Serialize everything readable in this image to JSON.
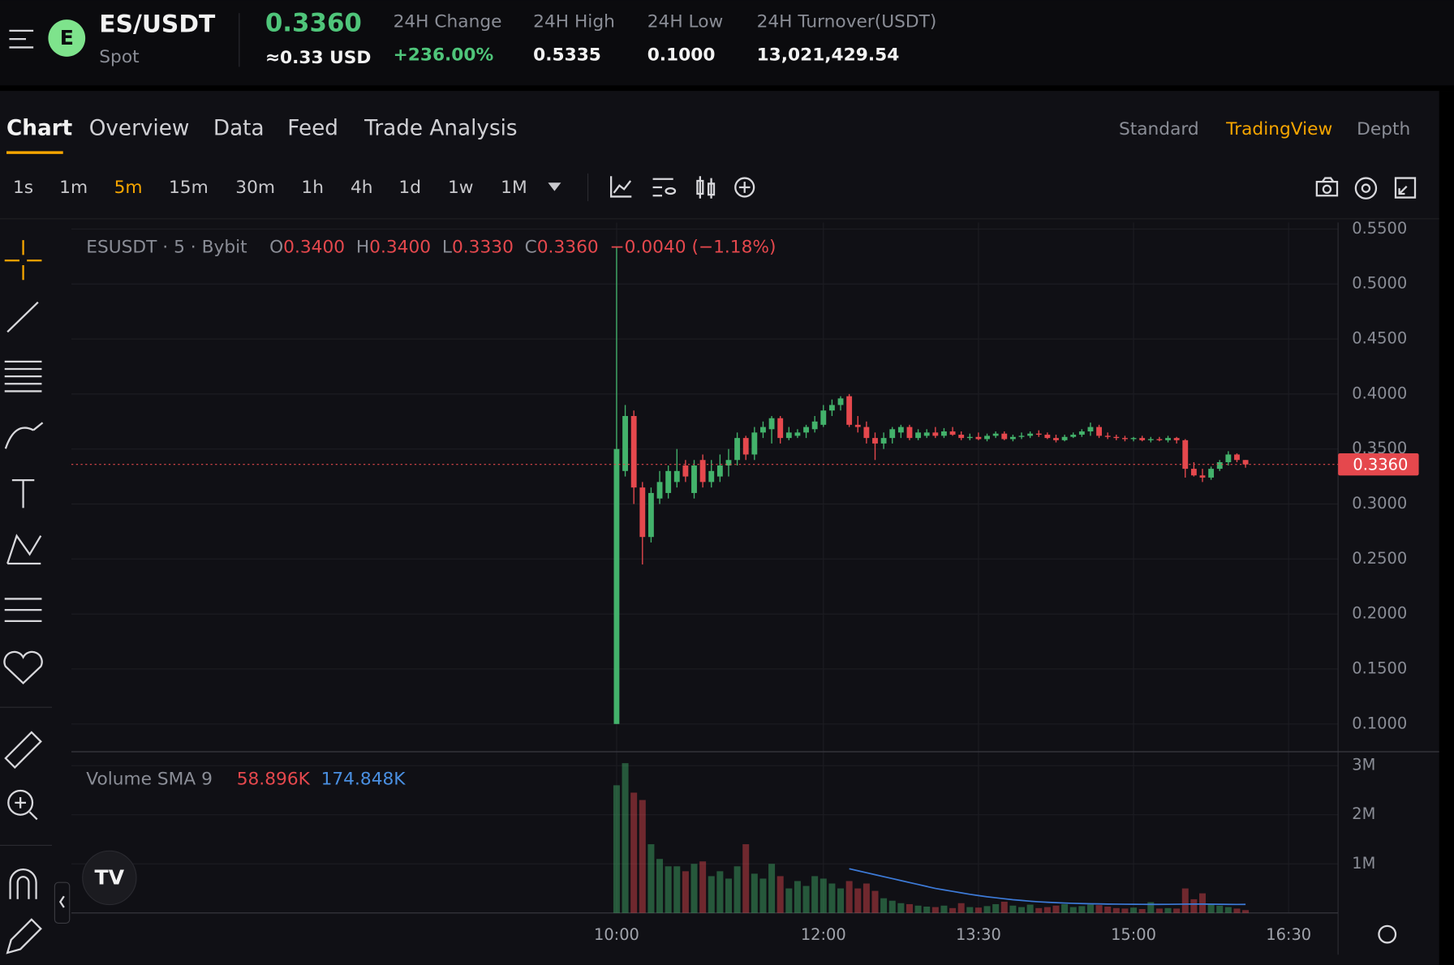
{
  "header": {
    "symbol": "ES/USDT",
    "market": "Spot",
    "price": "0.3360",
    "price_usd": "≈0.33 USD",
    "stats": [
      {
        "label": "24H Change",
        "value": "+236.00%"
      },
      {
        "label": "24H High",
        "value": "0.5335"
      },
      {
        "label": "24H Low",
        "value": "0.1000"
      },
      {
        "label": "24H Turnover(USDT)",
        "value": "13,021,429.54"
      }
    ]
  },
  "tabs": [
    "Chart",
    "Overview",
    "Data",
    "Feed",
    "Trade Analysis"
  ],
  "views": [
    "Standard",
    "TradingView",
    "Depth"
  ],
  "intervals": [
    "1s",
    "1m",
    "5m",
    "15m",
    "30m",
    "1h",
    "4h",
    "1d",
    "1w",
    "1M"
  ],
  "chart_data": {
    "type": "candlestick",
    "legend_symbol": "ESUSDT · 5 · Bybit",
    "ohlc_legend": [
      {
        "key": "O",
        "value": "0.3400"
      },
      {
        "key": "H",
        "value": "0.3400"
      },
      {
        "key": "L",
        "value": "0.3330"
      },
      {
        "key": "C",
        "value": "0.3360"
      }
    ],
    "change": "−0.0040 (−1.18%)",
    "up_color": "#43b26b",
    "down_color": "#e5484d",
    "grid": true,
    "x": [
      600,
      605,
      610,
      615,
      620,
      625,
      630,
      635,
      640,
      645,
      650,
      655,
      660,
      665,
      670,
      675,
      680,
      685,
      690,
      695,
      700,
      705,
      710,
      715,
      720,
      725,
      730,
      735,
      740,
      745,
      750,
      755,
      760,
      765,
      770,
      775,
      780,
      785,
      790,
      795,
      800,
      805,
      810,
      815,
      820,
      825,
      830,
      835,
      840,
      845,
      850,
      855,
      860,
      865,
      870,
      875,
      880,
      885,
      890,
      895,
      900,
      905,
      910,
      915,
      920,
      925,
      930,
      935,
      940,
      945,
      950,
      955,
      960,
      965
    ],
    "open": [
      0.1,
      0.33,
      0.38,
      0.315,
      0.27,
      0.305,
      0.31,
      0.32,
      0.335,
      0.31,
      0.34,
      0.32,
      0.325,
      0.335,
      0.34,
      0.36,
      0.345,
      0.365,
      0.368,
      0.378,
      0.36,
      0.362,
      0.365,
      0.368,
      0.372,
      0.385,
      0.39,
      0.398,
      0.372,
      0.37,
      0.36,
      0.355,
      0.36,
      0.365,
      0.37,
      0.36,
      0.362,
      0.365,
      0.362,
      0.366,
      0.363,
      0.36,
      0.361,
      0.359,
      0.362,
      0.364,
      0.359,
      0.361,
      0.362,
      0.364,
      0.363,
      0.36,
      0.358,
      0.361,
      0.363,
      0.366,
      0.37,
      0.362,
      0.361,
      0.36,
      0.359,
      0.36,
      0.358,
      0.359,
      0.358,
      0.36,
      0.358,
      0.332,
      0.326,
      0.324,
      0.332,
      0.338,
      0.345,
      0.34
    ],
    "high": [
      0.5335,
      0.39,
      0.385,
      0.32,
      0.315,
      0.33,
      0.335,
      0.35,
      0.34,
      0.34,
      0.345,
      0.34,
      0.345,
      0.35,
      0.365,
      0.362,
      0.37,
      0.375,
      0.38,
      0.38,
      0.37,
      0.368,
      0.372,
      0.38,
      0.39,
      0.395,
      0.398,
      0.4,
      0.38,
      0.375,
      0.365,
      0.365,
      0.37,
      0.372,
      0.372,
      0.368,
      0.368,
      0.37,
      0.369,
      0.37,
      0.366,
      0.364,
      0.365,
      0.364,
      0.366,
      0.366,
      0.363,
      0.365,
      0.366,
      0.367,
      0.365,
      0.363,
      0.363,
      0.365,
      0.368,
      0.374,
      0.372,
      0.365,
      0.363,
      0.362,
      0.361,
      0.362,
      0.361,
      0.361,
      0.362,
      0.361,
      0.359,
      0.338,
      0.332,
      0.334,
      0.34,
      0.348,
      0.346,
      0.34
    ],
    "low": [
      0.1,
      0.325,
      0.3,
      0.245,
      0.265,
      0.3,
      0.305,
      0.315,
      0.32,
      0.305,
      0.315,
      0.315,
      0.32,
      0.325,
      0.335,
      0.34,
      0.34,
      0.36,
      0.355,
      0.355,
      0.358,
      0.36,
      0.36,
      0.365,
      0.37,
      0.38,
      0.385,
      0.37,
      0.365,
      0.355,
      0.34,
      0.35,
      0.355,
      0.36,
      0.358,
      0.358,
      0.36,
      0.36,
      0.36,
      0.362,
      0.358,
      0.358,
      0.358,
      0.357,
      0.36,
      0.358,
      0.357,
      0.359,
      0.36,
      0.361,
      0.359,
      0.356,
      0.357,
      0.36,
      0.361,
      0.362,
      0.36,
      0.359,
      0.358,
      0.357,
      0.357,
      0.357,
      0.356,
      0.357,
      0.356,
      0.355,
      0.324,
      0.325,
      0.32,
      0.322,
      0.33,
      0.335,
      0.338,
      0.333
    ],
    "close": [
      0.35,
      0.38,
      0.315,
      0.27,
      0.31,
      0.32,
      0.33,
      0.33,
      0.325,
      0.335,
      0.32,
      0.33,
      0.335,
      0.34,
      0.36,
      0.345,
      0.365,
      0.37,
      0.378,
      0.36,
      0.365,
      0.365,
      0.37,
      0.375,
      0.385,
      0.39,
      0.396,
      0.372,
      0.37,
      0.36,
      0.355,
      0.36,
      0.368,
      0.37,
      0.36,
      0.365,
      0.365,
      0.362,
      0.366,
      0.363,
      0.36,
      0.361,
      0.359,
      0.362,
      0.364,
      0.359,
      0.361,
      0.362,
      0.364,
      0.363,
      0.36,
      0.358,
      0.361,
      0.363,
      0.366,
      0.37,
      0.362,
      0.361,
      0.36,
      0.359,
      0.36,
      0.358,
      0.359,
      0.358,
      0.36,
      0.358,
      0.332,
      0.326,
      0.324,
      0.332,
      0.338,
      0.345,
      0.34,
      0.336
    ],
    "xlim": [
      283.6,
      1018.7
    ],
    "xticks": [
      {
        "value": 600,
        "label": "10:00"
      },
      {
        "value": 720,
        "label": "12:00"
      },
      {
        "value": 810,
        "label": "13:30"
      },
      {
        "value": 900,
        "label": "15:00"
      },
      {
        "value": 990,
        "label": "16:30"
      }
    ],
    "ylim": [
      0.0756,
      0.5559
    ],
    "yticks": [
      {
        "value": 0.55,
        "label": "0.5500"
      },
      {
        "value": 0.5,
        "label": "0.5000"
      },
      {
        "value": 0.45,
        "label": "0.4500"
      },
      {
        "value": 0.4,
        "label": "0.4000"
      },
      {
        "value": 0.35,
        "label": "0.3500"
      },
      {
        "value": 0.3,
        "label": "0.3000"
      },
      {
        "value": 0.25,
        "label": "0.2500"
      },
      {
        "value": 0.2,
        "label": "0.2000"
      },
      {
        "value": 0.15,
        "label": "0.1500"
      },
      {
        "value": 0.1,
        "label": "0.1000"
      }
    ],
    "price_line": {
      "value": 0.336,
      "label": "0.3360"
    },
    "volume": {
      "title": "Volume SMA 9",
      "value_label": "58.896K",
      "sma_label": "174.848K",
      "sma_color": "#3d7bd9",
      "values": [
        2600000,
        3050000,
        2450000,
        2300000,
        1400000,
        1100000,
        950000,
        950000,
        850000,
        1000000,
        1050000,
        750000,
        850000,
        700000,
        950000,
        1400000,
        800000,
        700000,
        1000000,
        750000,
        500000,
        650000,
        550000,
        750000,
        700000,
        600000,
        500000,
        650000,
        500000,
        600000,
        450000,
        300000,
        250000,
        200000,
        180000,
        150000,
        130000,
        120000,
        150000,
        100000,
        200000,
        120000,
        110000,
        140000,
        180000,
        230000,
        150000,
        120000,
        170000,
        100000,
        120000,
        150000,
        180000,
        120000,
        140000,
        170000,
        160000,
        130000,
        100000,
        90000,
        110000,
        80000,
        220000,
        90000,
        100000,
        90000,
        500000,
        280000,
        400000,
        180000,
        150000,
        120000,
        90000,
        58896
      ],
      "sma": [
        null,
        null,
        null,
        null,
        null,
        null,
        null,
        null,
        null,
        null,
        null,
        null,
        null,
        null,
        null,
        null,
        null,
        null,
        null,
        null,
        null,
        null,
        null,
        null,
        null,
        null,
        null,
        900000,
        860000,
        820000,
        780000,
        740000,
        700000,
        660000,
        620000,
        580000,
        540000,
        500000,
        470000,
        440000,
        410000,
        380000,
        355000,
        330000,
        310000,
        290000,
        270000,
        255000,
        240000,
        228000,
        218000,
        210000,
        203000,
        197000,
        192000,
        188000,
        185000,
        182000,
        180000,
        178000,
        177000,
        176000,
        175000,
        175000,
        176000,
        178000,
        180000,
        182000,
        181000,
        179000,
        177000,
        175000,
        174000,
        174848
      ],
      "ylim": [
        0,
        3264000
      ],
      "yticks": [
        {
          "value": 1000000,
          "label": "1M"
        },
        {
          "value": 2000000,
          "label": "2M"
        },
        {
          "value": 3000000,
          "label": "3M"
        }
      ]
    }
  }
}
